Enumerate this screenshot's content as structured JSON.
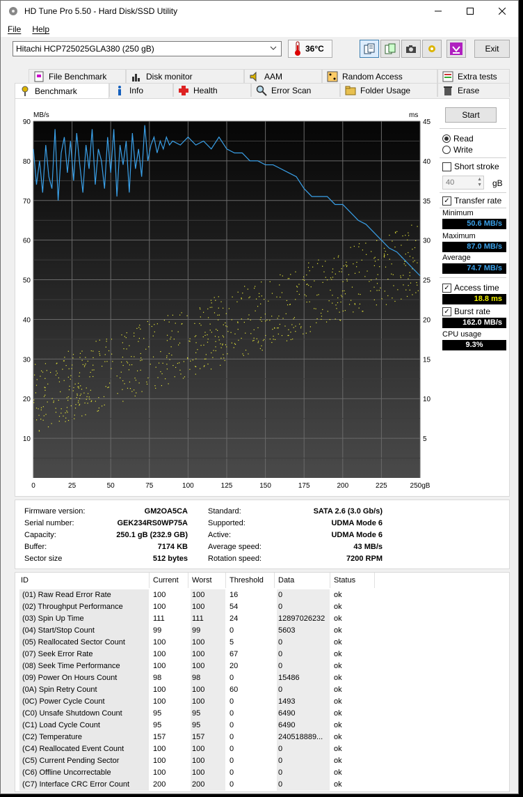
{
  "window": {
    "title": "HD Tune Pro 5.50 - Hard Disk/SSD Utility"
  },
  "menu": {
    "file": "File",
    "help": "Help"
  },
  "toolbar": {
    "drive": "Hitachi HCP725025GLA380 (250 gB)",
    "temperature": "36°C",
    "exit": "Exit"
  },
  "tabs_top": [
    "File Benchmark",
    "Disk monitor",
    "AAM",
    "Random Access",
    "Extra tests"
  ],
  "tabs_bottom": [
    "Benchmark",
    "Info",
    "Health",
    "Error Scan",
    "Folder Usage",
    "Erase"
  ],
  "side": {
    "start": "Start",
    "read": "Read",
    "write": "Write",
    "short_stroke": "Short stroke",
    "stroke_value": "40",
    "stroke_unit": "gB",
    "transfer_rate": "Transfer rate",
    "minimum_label": "Minimum",
    "minimum": "50.6 MB/s",
    "maximum_label": "Maximum",
    "maximum": "87.0 MB/s",
    "average_label": "Average",
    "average": "74.7 MB/s",
    "access_time": "Access time",
    "access_value": "18.8 ms",
    "burst_rate": "Burst rate",
    "burst_value": "162.0 MB/s",
    "cpu_label": "CPU usage",
    "cpu_value": "9.3%"
  },
  "colors": {
    "transfer": "#3aa0e8",
    "access": "#e8e83a",
    "min_val": "#3aa0e8",
    "access_val": "#f0f000",
    "white_val": "#ffffff"
  },
  "chart_data": {
    "type": "line",
    "ylabel_left": "MB/s",
    "ylabel_right": "ms",
    "xlabel": "gB",
    "x_ticks": [
      "0",
      "25",
      "50",
      "75",
      "100",
      "125",
      "150",
      "175",
      "200",
      "225",
      "250gB"
    ],
    "y_ticks_left": [
      "90",
      "80",
      "70",
      "60",
      "50",
      "40",
      "30",
      "20",
      "10"
    ],
    "y_ticks_right": [
      "45",
      "40",
      "35",
      "30",
      "25",
      "20",
      "15",
      "10",
      "5"
    ],
    "xlim": [
      0,
      250
    ],
    "ylim_left": [
      0,
      90
    ],
    "ylim_right": [
      0,
      45
    ],
    "grid": true,
    "series": [
      {
        "type": "line",
        "x": [
          0,
          2,
          4,
          6,
          8,
          10,
          12,
          14,
          16,
          18,
          20,
          22,
          24,
          26,
          28,
          30,
          32,
          34,
          36,
          38,
          40,
          42,
          44,
          46,
          48,
          50,
          52,
          54,
          56,
          58,
          60,
          62,
          64,
          66,
          68,
          70,
          72,
          74,
          76,
          78,
          80,
          82,
          84,
          86,
          88,
          90,
          95,
          100,
          105,
          110,
          115,
          120,
          125,
          130,
          135,
          140,
          145,
          150,
          155,
          160,
          165,
          170,
          175,
          180,
          185,
          190,
          195,
          200,
          205,
          210,
          215,
          220,
          225,
          230,
          235,
          240,
          245,
          250
        ],
        "values": [
          83,
          74,
          80,
          72,
          84,
          76,
          73,
          88,
          70,
          82,
          86,
          77,
          85,
          75,
          87,
          79,
          72,
          84,
          78,
          88,
          74,
          83,
          80,
          73,
          86,
          77,
          88,
          71,
          84,
          79,
          85,
          72,
          87,
          78,
          83,
          76,
          89,
          80,
          84,
          86,
          82,
          85,
          83,
          86,
          84,
          85,
          84,
          86,
          84,
          85,
          83,
          86,
          83,
          82,
          82,
          80,
          80,
          79,
          79,
          78,
          77,
          76,
          73,
          71,
          71,
          71,
          69,
          69,
          67,
          65,
          64,
          62,
          60,
          58,
          57,
          55,
          53,
          51
        ]
      }
    ],
    "access_points": "scatter of ~700 access time samples rising from ~10ms at 0 gB to ~28ms at 250 gB"
  },
  "info": {
    "firmware_label": "Firmware version:",
    "firmware": "GM2OA5CA",
    "serial_label": "Serial number:",
    "serial": "GEK234RS0WP75A",
    "capacity_label": "Capacity:",
    "capacity": "250.1 gB (232.9 GB)",
    "buffer_label": "Buffer:",
    "buffer": "7174 KB",
    "sector_label": "Sector size",
    "sector": "512 bytes",
    "standard_label": "Standard:",
    "standard": "SATA 2.6 (3.0 Gb/s)",
    "supported_label": "Supported:",
    "supported": "UDMA Mode 6",
    "active_label": "Active:",
    "active": "UDMA Mode 6",
    "avgspeed_label": "Average speed:",
    "avgspeed": "43 MB/s",
    "rotation_label": "Rotation speed:",
    "rotation": "7200 RPM"
  },
  "smart": {
    "headers": [
      "ID",
      "Current",
      "Worst",
      "Threshold",
      "Data",
      "Status"
    ],
    "rows": [
      [
        "(01) Raw Read Error Rate",
        "100",
        "100",
        "16",
        "0",
        "ok"
      ],
      [
        "(02) Throughput Performance",
        "100",
        "100",
        "54",
        "0",
        "ok"
      ],
      [
        "(03) Spin Up Time",
        "111",
        "111",
        "24",
        "12897026232",
        "ok"
      ],
      [
        "(04) Start/Stop Count",
        "99",
        "99",
        "0",
        "5603",
        "ok"
      ],
      [
        "(05) Reallocated Sector Count",
        "100",
        "100",
        "5",
        "0",
        "ok"
      ],
      [
        "(07) Seek Error Rate",
        "100",
        "100",
        "67",
        "0",
        "ok"
      ],
      [
        "(08) Seek Time Performance",
        "100",
        "100",
        "20",
        "0",
        "ok"
      ],
      [
        "(09) Power On Hours Count",
        "98",
        "98",
        "0",
        "15486",
        "ok"
      ],
      [
        "(0A) Spin Retry Count",
        "100",
        "100",
        "60",
        "0",
        "ok"
      ],
      [
        "(0C) Power Cycle Count",
        "100",
        "100",
        "0",
        "1493",
        "ok"
      ],
      [
        "(C0) Unsafe Shutdown Count",
        "95",
        "95",
        "0",
        "6490",
        "ok"
      ],
      [
        "(C1) Load Cycle Count",
        "95",
        "95",
        "0",
        "6490",
        "ok"
      ],
      [
        "(C2) Temperature",
        "157",
        "157",
        "0",
        "240518889...",
        "ok"
      ],
      [
        "(C4) Reallocated Event Count",
        "100",
        "100",
        "0",
        "0",
        "ok"
      ],
      [
        "(C5) Current Pending Sector",
        "100",
        "100",
        "0",
        "0",
        "ok"
      ],
      [
        "(C6) Offline Uncorrectable",
        "100",
        "100",
        "0",
        "0",
        "ok"
      ],
      [
        "(C7) Interface CRC Error Count",
        "200",
        "200",
        "0",
        "0",
        "ok"
      ]
    ]
  }
}
